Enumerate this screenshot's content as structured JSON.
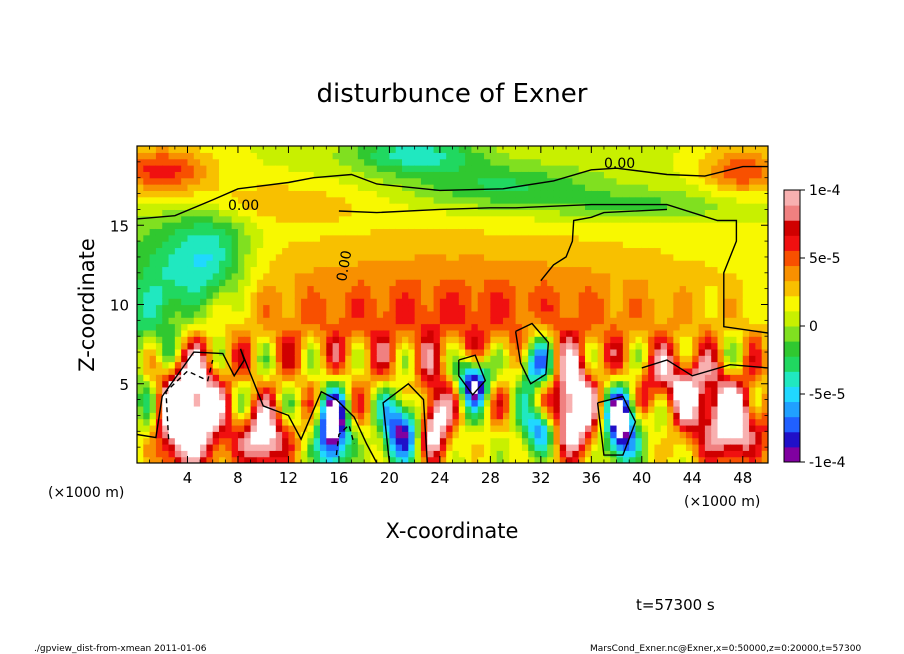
{
  "chart_data": {
    "type": "heatmap",
    "title": "disturbunce of Exner",
    "xlabel": "X-coordinate",
    "ylabel": "Z-coordinate",
    "x_unit": "(×1000 m)",
    "z_unit": "(×1000 m)",
    "xlim": [
      0,
      50
    ],
    "ylim": [
      0,
      20
    ],
    "x_ticks": [
      4,
      8,
      12,
      16,
      20,
      24,
      28,
      32,
      36,
      40,
      44,
      48
    ],
    "y_ticks": [
      5,
      10,
      15
    ],
    "colorbar": {
      "range": [
        -0.0001,
        0.0001
      ],
      "tick_values": [
        0.0001,
        5e-05,
        0,
        -5e-05,
        -0.0001
      ],
      "tick_labels": [
        "1e-4",
        "5e-5",
        "0",
        "-5e-5",
        "-1e-4"
      ],
      "colors": [
        "#8000a0",
        "#2010c8",
        "#2060ff",
        "#20a0ff",
        "#20d8ff",
        "#20e8c0",
        "#20d860",
        "#30c830",
        "#80e020",
        "#c8f000",
        "#f8f800",
        "#f8c000",
        "#f89000",
        "#f85000",
        "#f01010",
        "#d00000",
        "#f08080",
        "#f8b0b0"
      ]
    },
    "contour_labels": [
      "0.00",
      "0.00",
      "0.00"
    ],
    "time_label": "t=57300 s"
  },
  "footer": {
    "left": "./gpview_dist-from-xmean  2011-01-06",
    "right": "MarsCond_Exner.nc@Exner,x=0:50000,z=0:20000,t=57300"
  }
}
